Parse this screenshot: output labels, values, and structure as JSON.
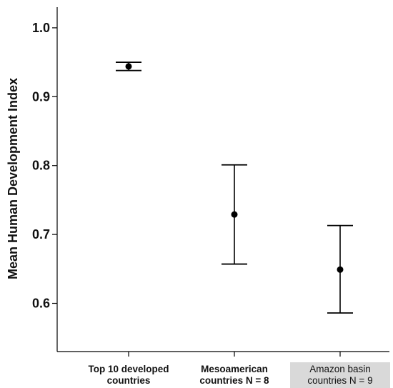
{
  "chart_data": {
    "type": "errorbar",
    "title": "",
    "ylabel": "Mean Human Development Index",
    "xlabel": "",
    "ylim": [
      0.53,
      1.03
    ],
    "yticks": [
      "1.0",
      "0.9",
      "0.8",
      "0.7",
      "0.6"
    ],
    "ytick_values": [
      1.0,
      0.9,
      0.8,
      0.7,
      0.6
    ],
    "categories": [
      "Top 10 developed\ncountries",
      "Mesoamerican\ncountries N = 8",
      "Amazon basin\ncountries N = 9"
    ],
    "means": [
      0.944,
      0.729,
      0.649
    ],
    "lower": [
      0.938,
      0.657,
      0.586
    ],
    "upper": [
      0.95,
      0.801,
      0.713
    ],
    "highlighted_category": "Amazon basin\ncountries N = 9"
  }
}
